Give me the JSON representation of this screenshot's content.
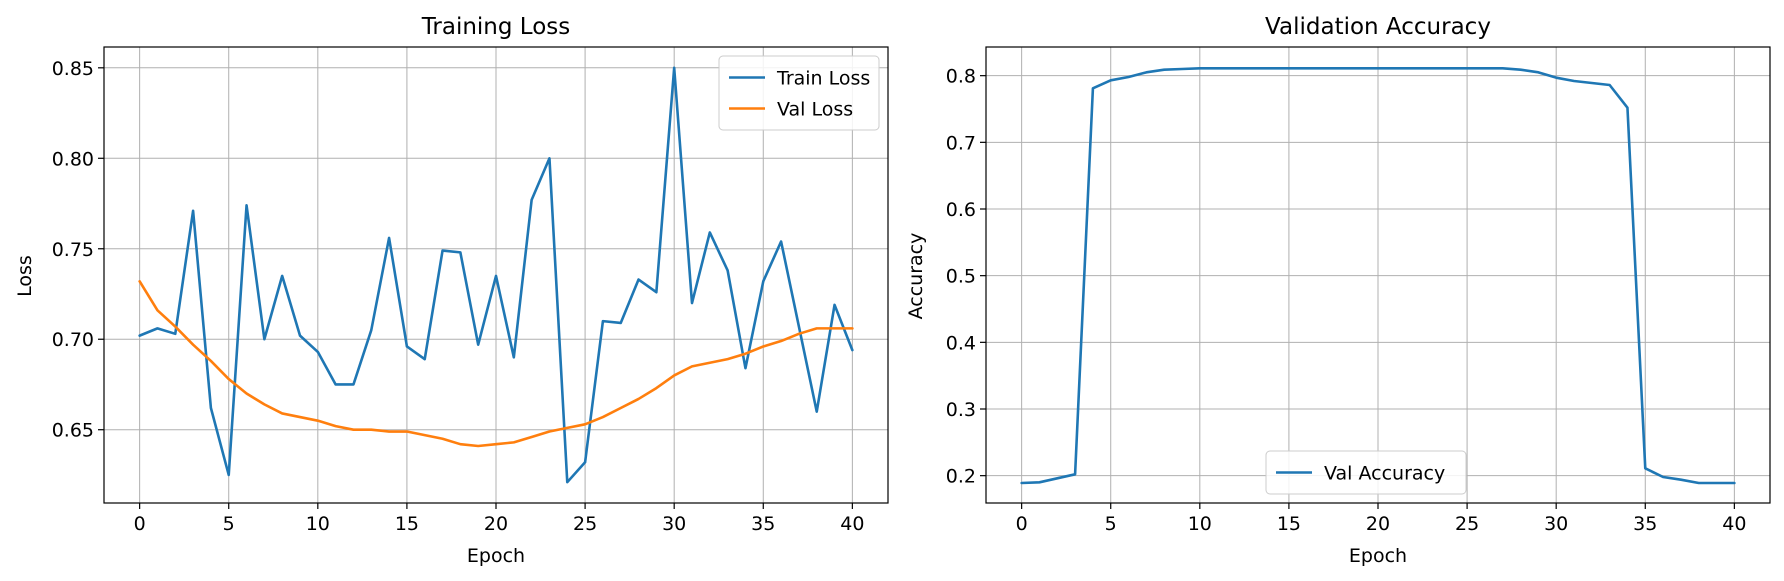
{
  "chart_data": [
    {
      "type": "line",
      "title": "Training Loss",
      "xlabel": "Epoch",
      "ylabel": "Loss",
      "xlim": [
        -2,
        42
      ],
      "ylim": [
        0.6095,
        0.8615
      ],
      "xticks": [
        0,
        5,
        10,
        15,
        20,
        25,
        30,
        35,
        40
      ],
      "yticks": [
        0.65,
        0.7,
        0.75,
        0.8,
        0.85
      ],
      "ytick_labels": [
        "0.65",
        "0.70",
        "0.75",
        "0.80",
        "0.85"
      ],
      "grid": true,
      "legend": "top-right",
      "x": [
        0,
        1,
        2,
        3,
        4,
        5,
        6,
        7,
        8,
        9,
        10,
        11,
        12,
        13,
        14,
        15,
        16,
        17,
        18,
        19,
        20,
        21,
        22,
        23,
        24,
        25,
        26,
        27,
        28,
        29,
        30,
        31,
        32,
        33,
        34,
        35,
        36,
        37,
        38,
        39,
        40
      ],
      "series": [
        {
          "name": "Train Loss",
          "color": "#1f77b4",
          "values": [
            0.702,
            0.706,
            0.703,
            0.771,
            0.662,
            0.625,
            0.774,
            0.7,
            0.735,
            0.702,
            0.693,
            0.675,
            0.675,
            0.705,
            0.756,
            0.696,
            0.689,
            0.749,
            0.748,
            0.697,
            0.735,
            0.69,
            0.777,
            0.8,
            0.621,
            0.632,
            0.71,
            0.709,
            0.733,
            0.726,
            0.85,
            0.72,
            0.759,
            0.738,
            0.684,
            0.732,
            0.754,
            0.707,
            0.66,
            0.719,
            0.694
          ]
        },
        {
          "name": "Val Loss",
          "color": "#ff7f0e",
          "values": [
            0.732,
            0.716,
            0.707,
            0.697,
            0.688,
            0.678,
            0.67,
            0.664,
            0.659,
            0.657,
            0.655,
            0.652,
            0.65,
            0.65,
            0.649,
            0.649,
            0.647,
            0.645,
            0.642,
            0.641,
            0.642,
            0.643,
            0.646,
            0.649,
            0.651,
            0.653,
            0.657,
            0.662,
            0.667,
            0.673,
            0.68,
            0.685,
            0.687,
            0.689,
            0.692,
            0.696,
            0.699,
            0.703,
            0.706,
            0.706,
            0.706
          ]
        }
      ]
    },
    {
      "type": "line",
      "title": "Validation Accuracy",
      "xlabel": "Epoch",
      "ylabel": "Accuracy",
      "xlim": [
        -2,
        42
      ],
      "ylim": [
        0.159,
        0.843
      ],
      "xticks": [
        0,
        5,
        10,
        15,
        20,
        25,
        30,
        35,
        40
      ],
      "yticks": [
        0.2,
        0.3,
        0.4,
        0.5,
        0.6,
        0.7,
        0.8
      ],
      "ytick_labels": [
        "0.2",
        "0.3",
        "0.4",
        "0.5",
        "0.6",
        "0.7",
        "0.8"
      ],
      "grid": true,
      "legend": "bottom-center",
      "x": [
        0,
        1,
        2,
        3,
        4,
        5,
        6,
        7,
        8,
        9,
        10,
        11,
        12,
        13,
        14,
        15,
        16,
        17,
        18,
        19,
        20,
        21,
        22,
        23,
        24,
        25,
        26,
        27,
        28,
        29,
        30,
        31,
        32,
        33,
        34,
        35,
        36,
        37,
        38,
        39,
        40
      ],
      "series": [
        {
          "name": "Val Accuracy",
          "color": "#1f77b4",
          "values": [
            0.189,
            0.19,
            0.196,
            0.202,
            0.781,
            0.793,
            0.798,
            0.805,
            0.809,
            0.81,
            0.811,
            0.811,
            0.811,
            0.811,
            0.811,
            0.811,
            0.811,
            0.811,
            0.811,
            0.811,
            0.811,
            0.811,
            0.811,
            0.811,
            0.811,
            0.811,
            0.811,
            0.811,
            0.809,
            0.805,
            0.797,
            0.792,
            0.789,
            0.786,
            0.752,
            0.211,
            0.198,
            0.194,
            0.189,
            0.189,
            0.189
          ]
        }
      ]
    }
  ]
}
